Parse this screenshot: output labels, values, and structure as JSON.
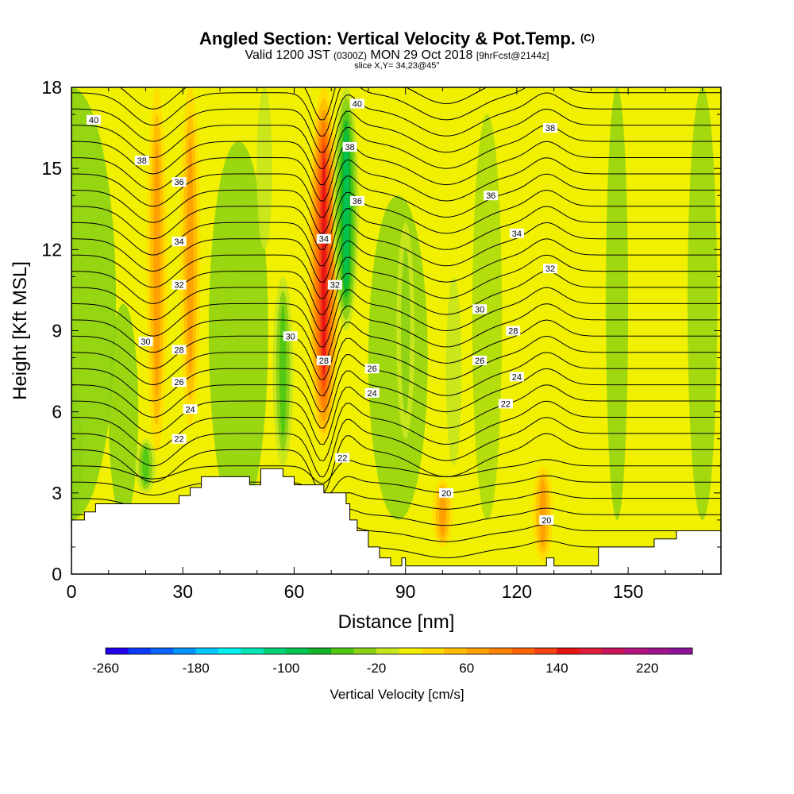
{
  "header": {
    "title": "Angled Section: Vertical Velocity & Pot.Temp.",
    "title_tag": "(C)",
    "valid_prefix": "Valid 1200 JST",
    "valid_utc": "(0300Z)",
    "valid_date": "MON 29 Oct 2018",
    "forecast": "[9hrFcst@2144z]",
    "slice": "slice X,Y= 34,23@45°"
  },
  "chart_data": {
    "type": "heatmap",
    "title": "Angled Section: Vertical Velocity & Pot.Temp.",
    "xlabel": "Distance [nm]",
    "ylabel": "Height [Kft MSL]",
    "xlim": [
      0,
      175
    ],
    "ylim": [
      0,
      18
    ],
    "x_ticks": [
      0,
      30,
      60,
      90,
      120,
      150
    ],
    "y_ticks": [
      0,
      3,
      6,
      9,
      12,
      15,
      18
    ],
    "colorbar": {
      "label": "Vertical Velocity [cm/s]",
      "tick_labels": [
        -260,
        -180,
        -100,
        -20,
        60,
        140,
        220
      ],
      "min": -260,
      "max": 260,
      "step": 20,
      "colors": [
        "#1e00f0",
        "#0a3cff",
        "#0a64ff",
        "#0096ff",
        "#00c8ff",
        "#00f0f0",
        "#00e6b4",
        "#00d278",
        "#00c350",
        "#14b428",
        "#50c814",
        "#8cd214",
        "#c8e61e",
        "#f0f000",
        "#ffdc00",
        "#ffbe00",
        "#ffa000",
        "#ff8200",
        "#ff6400",
        "#f54114",
        "#e61414",
        "#dc1e3c",
        "#c8145a",
        "#b4147d",
        "#a0148c",
        "#8c1496"
      ]
    },
    "velocity_cores": [
      {
        "x": 23,
        "y_range": [
          4.5,
          18
        ],
        "value": 60
      },
      {
        "x": 32,
        "y_range": [
          5.5,
          18
        ],
        "value": 60
      },
      {
        "x": 68,
        "y_range": [
          4.8,
          18
        ],
        "value": 140
      },
      {
        "x": 74,
        "y_range": [
          9,
          18
        ],
        "value": -100
      },
      {
        "x": 57,
        "y_range": [
          4,
          11
        ],
        "value": -60
      },
      {
        "x": 52,
        "y_range": [
          12,
          18
        ],
        "value": -20
      },
      {
        "x": 90,
        "y_range": [
          5,
          13
        ],
        "value": -40
      },
      {
        "x": 103,
        "y_range": [
          4,
          11
        ],
        "value": -20
      },
      {
        "x": 20,
        "y_range": [
          3,
          5
        ],
        "value": -60
      },
      {
        "x": 100,
        "y_range": [
          1,
          3.5
        ],
        "value": 60
      },
      {
        "x": 127,
        "y_range": [
          0.5,
          4
        ],
        "value": 60
      }
    ],
    "isentrope_labels": [
      {
        "value": "40",
        "x": 6,
        "y": 16.8
      },
      {
        "value": "38",
        "x": 19,
        "y": 15.3
      },
      {
        "value": "36",
        "x": 29,
        "y": 14.5
      },
      {
        "value": "34",
        "x": 29,
        "y": 12.3
      },
      {
        "value": "32",
        "x": 29,
        "y": 10.7
      },
      {
        "value": "30",
        "x": 20,
        "y": 8.6
      },
      {
        "value": "28",
        "x": 29,
        "y": 8.3
      },
      {
        "value": "26",
        "x": 29,
        "y": 7.1
      },
      {
        "value": "24",
        "x": 32,
        "y": 6.1
      },
      {
        "value": "22",
        "x": 29,
        "y": 5.0
      },
      {
        "value": "40",
        "x": 77,
        "y": 17.4
      },
      {
        "value": "38",
        "x": 75,
        "y": 15.8
      },
      {
        "value": "36",
        "x": 77,
        "y": 13.8
      },
      {
        "value": "34",
        "x": 68,
        "y": 12.4
      },
      {
        "value": "32",
        "x": 71,
        "y": 10.7
      },
      {
        "value": "30",
        "x": 59,
        "y": 8.8
      },
      {
        "value": "28",
        "x": 68,
        "y": 7.9
      },
      {
        "value": "26",
        "x": 81,
        "y": 7.6
      },
      {
        "value": "24",
        "x": 81,
        "y": 6.7
      },
      {
        "value": "22",
        "x": 73,
        "y": 4.3
      },
      {
        "value": "38",
        "x": 129,
        "y": 16.5
      },
      {
        "value": "36",
        "x": 113,
        "y": 14.0
      },
      {
        "value": "34",
        "x": 120,
        "y": 12.6
      },
      {
        "value": "32",
        "x": 129,
        "y": 11.3
      },
      {
        "value": "30",
        "x": 110,
        "y": 9.8
      },
      {
        "value": "28",
        "x": 119,
        "y": 9.0
      },
      {
        "value": "26",
        "x": 110,
        "y": 7.9
      },
      {
        "value": "24",
        "x": 120,
        "y": 7.3
      },
      {
        "value": "22",
        "x": 117,
        "y": 6.3
      },
      {
        "value": "20",
        "x": 101,
        "y": 3.0
      },
      {
        "value": "20",
        "x": 128,
        "y": 2.0
      }
    ],
    "terrain": [
      [
        0,
        0
      ],
      [
        0,
        2
      ],
      [
        3.5,
        2
      ],
      [
        3.5,
        2.3
      ],
      [
        6.5,
        2.3
      ],
      [
        6.5,
        2.6
      ],
      [
        29,
        2.6
      ],
      [
        29,
        2.9
      ],
      [
        32,
        2.9
      ],
      [
        32,
        3.2
      ],
      [
        35,
        3.2
      ],
      [
        35,
        3.6
      ],
      [
        48,
        3.6
      ],
      [
        48,
        3.3
      ],
      [
        51,
        3.3
      ],
      [
        51,
        3.9
      ],
      [
        57,
        3.9
      ],
      [
        57,
        3.6
      ],
      [
        60,
        3.6
      ],
      [
        60,
        3.3
      ],
      [
        68,
        3.3
      ],
      [
        68,
        3.0
      ],
      [
        74,
        3.0
      ],
      [
        74,
        2.6
      ],
      [
        75,
        2.6
      ],
      [
        75,
        2.0
      ],
      [
        77,
        2.0
      ],
      [
        77,
        1.6
      ],
      [
        80,
        1.6
      ],
      [
        80,
        1.0
      ],
      [
        83,
        1.0
      ],
      [
        83,
        0.6
      ],
      [
        86,
        0.6
      ],
      [
        86,
        0.3
      ],
      [
        89,
        0.3
      ],
      [
        89,
        0.6
      ],
      [
        90,
        0.6
      ],
      [
        90,
        0.3
      ],
      [
        128,
        0.3
      ],
      [
        128,
        0.6
      ],
      [
        130,
        0.6
      ],
      [
        130,
        0.3
      ],
      [
        142,
        0.3
      ],
      [
        142,
        1.0
      ],
      [
        157,
        1.0
      ],
      [
        157,
        1.3
      ],
      [
        163,
        1.3
      ],
      [
        163,
        1.6
      ],
      [
        175,
        1.6
      ],
      [
        175,
        0
      ]
    ]
  }
}
